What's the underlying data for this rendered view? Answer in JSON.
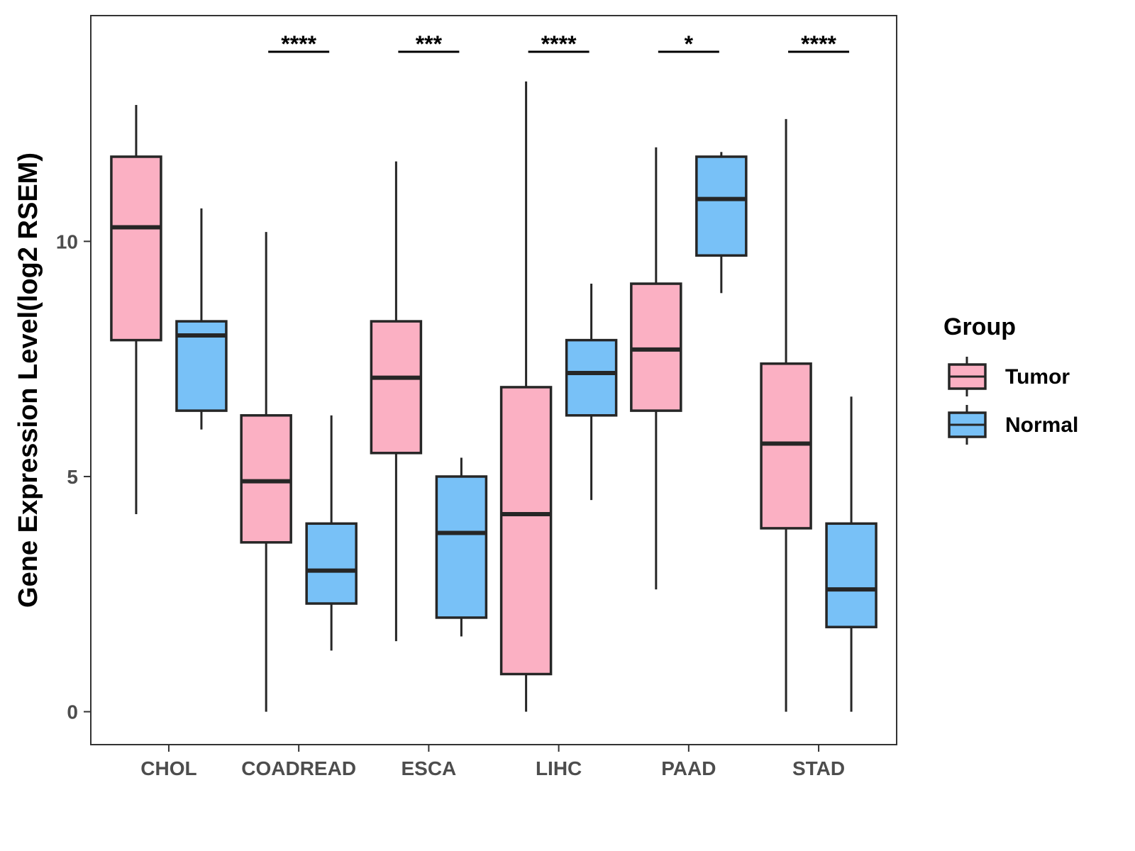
{
  "chart_data": {
    "type": "boxplot",
    "title": "",
    "xlabel": "",
    "ylabel": "Gene Expression Level(log2 RSEM)",
    "ylim": [
      -0.7,
      14.8
    ],
    "yticks": [
      0,
      5,
      10
    ],
    "categories": [
      "CHOL",
      "COADREAD",
      "ESCA",
      "LIHC",
      "PAAD",
      "STAD"
    ],
    "legend": {
      "title": "Group",
      "position": "right",
      "entries": [
        {
          "name": "Tumor",
          "color": "#fbb0c3"
        },
        {
          "name": "Normal",
          "color": "#78c1f7"
        }
      ]
    },
    "series": [
      {
        "name": "Tumor",
        "color": "#fbb0c3",
        "boxes": [
          {
            "category": "CHOL",
            "min": 4.2,
            "q1": 7.9,
            "median": 10.3,
            "q3": 11.8,
            "max": 12.9
          },
          {
            "category": "COADREAD",
            "min": 0.0,
            "q1": 3.6,
            "median": 4.9,
            "q3": 6.3,
            "max": 10.2
          },
          {
            "category": "ESCA",
            "min": 1.5,
            "q1": 5.5,
            "median": 7.1,
            "q3": 8.3,
            "max": 11.7
          },
          {
            "category": "LIHC",
            "min": 0.0,
            "q1": 0.8,
            "median": 4.2,
            "q3": 6.9,
            "max": 13.4
          },
          {
            "category": "PAAD",
            "min": 2.6,
            "q1": 6.4,
            "median": 7.7,
            "q3": 9.1,
            "max": 12.0
          },
          {
            "category": "STAD",
            "min": 0.0,
            "q1": 3.9,
            "median": 5.7,
            "q3": 7.4,
            "max": 12.6
          }
        ]
      },
      {
        "name": "Normal",
        "color": "#78c1f7",
        "boxes": [
          {
            "category": "CHOL",
            "min": 6.0,
            "q1": 6.4,
            "median": 8.0,
            "q3": 8.3,
            "max": 10.7
          },
          {
            "category": "COADREAD",
            "min": 1.3,
            "q1": 2.3,
            "median": 3.0,
            "q3": 4.0,
            "max": 6.3
          },
          {
            "category": "ESCA",
            "min": 1.6,
            "q1": 2.0,
            "median": 3.8,
            "q3": 5.0,
            "max": 5.4
          },
          {
            "category": "LIHC",
            "min": 4.5,
            "q1": 6.3,
            "median": 7.2,
            "q3": 7.9,
            "max": 9.1
          },
          {
            "category": "PAAD",
            "min": 8.9,
            "q1": 9.7,
            "median": 10.9,
            "q3": 11.8,
            "max": 11.9
          },
          {
            "category": "STAD",
            "min": 0.0,
            "q1": 1.8,
            "median": 2.6,
            "q3": 4.0,
            "max": 6.7
          }
        ]
      }
    ],
    "significance": [
      {
        "category": "COADREAD",
        "label": "****"
      },
      {
        "category": "ESCA",
        "label": "***"
      },
      {
        "category": "LIHC",
        "label": "****"
      },
      {
        "category": "PAAD",
        "label": "*"
      },
      {
        "category": "STAD",
        "label": "****"
      }
    ]
  }
}
